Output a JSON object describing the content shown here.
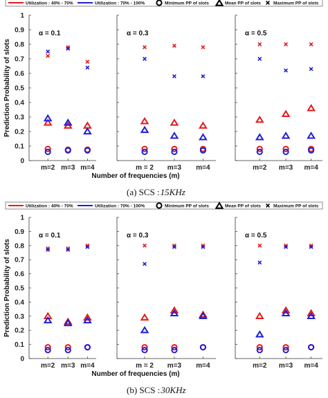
{
  "legend": {
    "util_low": "Utilization : 40% - 70%",
    "util_high": "Utilization : 70% - 100%",
    "min_pp": "Minimum PP of slots",
    "mean_pp": "Mean PP of slots",
    "max_pp": "Maximum PP of slots"
  },
  "colors": {
    "util_low": "#e41a1c",
    "util_high": "#1f1fd6"
  },
  "chart_data": [
    {
      "type": "scatter",
      "subfigure_caption": "(a)  SCS : ",
      "caption_math": "15KHz",
      "ylabel": "Prediction Probability of slots",
      "xlabel": "Number of frequencies (m)",
      "ylim": [
        0,
        1
      ],
      "yticks": [
        "0",
        "0.1",
        "0.2",
        "0.3",
        "0.4",
        "0.5",
        "0.6",
        "0.7",
        "0.8",
        "0.9",
        "1"
      ],
      "panels": [
        {
          "title": "α = 0.1",
          "categories": [
            "m=2",
            "m=3",
            "m=4"
          ],
          "series": [
            {
              "name": "Utilization : 40% - 70%",
              "min": [
                0.08,
                0.075,
                0.075
              ],
              "mean": [
                0.26,
                0.24,
                0.24
              ],
              "max": [
                0.72,
                0.78,
                0.68
              ]
            },
            {
              "name": "Utilization : 70% - 100%",
              "min": [
                0.06,
                0.07,
                0.07
              ],
              "mean": [
                0.29,
                0.26,
                0.2
              ],
              "max": [
                0.75,
                0.77,
                0.64
              ]
            }
          ]
        },
        {
          "title": "α = 0.3",
          "categories": [
            "m = 2",
            "m=3",
            "m=4"
          ],
          "series": [
            {
              "name": "Utilization : 40% - 70%",
              "min": [
                0.08,
                0.08,
                0.08
              ],
              "mean": [
                0.27,
                0.26,
                0.24
              ],
              "max": [
                0.78,
                0.79,
                0.78
              ]
            },
            {
              "name": "Utilization : 70% - 100%",
              "min": [
                0.06,
                0.06,
                0.07
              ],
              "mean": [
                0.21,
                0.17,
                0.16
              ],
              "max": [
                0.7,
                0.58,
                0.58
              ]
            }
          ]
        },
        {
          "title": "α = 0.5",
          "categories": [
            "m=2",
            "m=3",
            "m=4"
          ],
          "series": [
            {
              "name": "Utilization : 40% - 70%",
              "min": [
                0.08,
                0.08,
                0.08
              ],
              "mean": [
                0.28,
                0.32,
                0.36
              ],
              "max": [
                0.8,
                0.8,
                0.8
              ]
            },
            {
              "name": "Utilization : 70% - 100%",
              "min": [
                0.06,
                0.06,
                0.07
              ],
              "mean": [
                0.16,
                0.17,
                0.17
              ],
              "max": [
                0.7,
                0.62,
                0.63
              ]
            }
          ]
        }
      ]
    },
    {
      "type": "scatter",
      "subfigure_caption": "(b)  SCS : ",
      "caption_math": "30KHz",
      "ylabel": "Prediction Probability of slots",
      "xlabel": "Number of frequencies (m)",
      "ylim": [
        0,
        1
      ],
      "yticks": [
        "0",
        "0.1",
        "0.2",
        "0.3",
        "0.4",
        "0.5",
        "0.6",
        "0.7",
        "0.8",
        "0.9",
        "1"
      ],
      "panels": [
        {
          "title": "α = 0.1",
          "categories": [
            "m=2",
            "m=3",
            "m=4"
          ],
          "series": [
            {
              "name": "Utilization : 40% - 70%",
              "min": [
                0.08,
                0.08,
                0.08
              ],
              "mean": [
                0.3,
                0.26,
                0.29
              ],
              "max": [
                0.78,
                0.78,
                0.8
              ]
            },
            {
              "name": "Utilization : 70% - 100%",
              "min": [
                0.06,
                0.06,
                0.08
              ],
              "mean": [
                0.27,
                0.25,
                0.27
              ],
              "max": [
                0.77,
                0.77,
                0.79
              ]
            }
          ]
        },
        {
          "title": "α = 0.3",
          "categories": [
            "m = 2",
            "m=3",
            "m=4"
          ],
          "series": [
            {
              "name": "Utilization : 40% - 70%",
              "min": [
                0.08,
                0.08,
                0.08
              ],
              "mean": [
                0.29,
                0.34,
                0.31
              ],
              "max": [
                0.8,
                0.8,
                0.8
              ]
            },
            {
              "name": "Utilization : 70% - 100%",
              "min": [
                0.06,
                0.06,
                0.08
              ],
              "mean": [
                0.2,
                0.32,
                0.3
              ],
              "max": [
                0.67,
                0.79,
                0.79
              ]
            }
          ]
        },
        {
          "title": "α = 0.5",
          "categories": [
            "m=2",
            "m=3",
            "m=4"
          ],
          "series": [
            {
              "name": "Utilization : 40% - 70%",
              "min": [
                0.08,
                0.08,
                0.08
              ],
              "mean": [
                0.3,
                0.34,
                0.32
              ],
              "max": [
                0.8,
                0.8,
                0.8
              ]
            },
            {
              "name": "Utilization : 70% - 100%",
              "min": [
                0.06,
                0.06,
                0.08
              ],
              "mean": [
                0.17,
                0.32,
                0.3
              ],
              "max": [
                0.68,
                0.79,
                0.79
              ]
            }
          ]
        }
      ]
    }
  ]
}
